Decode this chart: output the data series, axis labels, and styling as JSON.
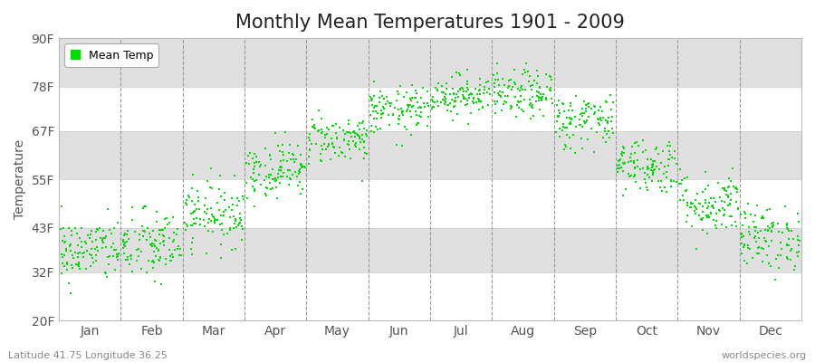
{
  "title": "Monthly Mean Temperatures 1901 - 2009",
  "ylabel": "Temperature",
  "xlabel_bottom_left": "Latitude 41.75 Longitude 36.25",
  "xlabel_bottom_right": "worldspecies.org",
  "ytick_labels": [
    "20F",
    "32F",
    "43F",
    "55F",
    "67F",
    "78F",
    "90F"
  ],
  "ytick_values": [
    20,
    32,
    43,
    55,
    67,
    78,
    90
  ],
  "ylim": [
    20,
    90
  ],
  "months": [
    "Jan",
    "Feb",
    "Mar",
    "Apr",
    "May",
    "Jun",
    "Jul",
    "Aug",
    "Sep",
    "Oct",
    "Nov",
    "Dec"
  ],
  "dot_color": "#00dd00",
  "n_years": 109,
  "monthly_mean_F": [
    37.4,
    38.5,
    46.5,
    57.5,
    65.0,
    72.0,
    76.0,
    76.0,
    69.5,
    58.5,
    49.0,
    40.5
  ],
  "monthly_std_F": [
    4.0,
    4.5,
    4.0,
    3.5,
    3.0,
    3.0,
    2.5,
    3.0,
    3.5,
    3.5,
    4.0,
    4.0
  ],
  "title_fontsize": 15,
  "legend_fontsize": 9,
  "tick_fontsize": 10,
  "marker_size": 3.5,
  "band_colors": [
    "#e8e8e8",
    "#f5f5f5",
    "#e8e8e8",
    "#f5f5f5",
    "#e8e8e8",
    "#f5f5f5"
  ],
  "xlim_left": 0.0,
  "xlim_right": 12.0
}
